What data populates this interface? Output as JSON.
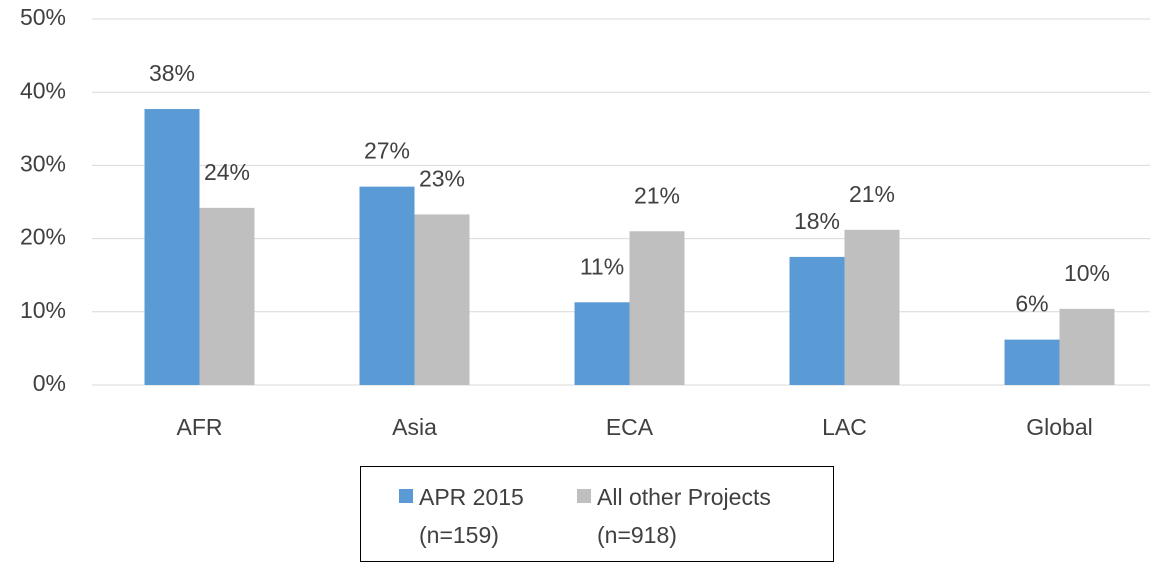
{
  "chart_data": {
    "type": "bar",
    "categories": [
      "AFR",
      "Asia",
      "ECA",
      "LAC",
      "Global"
    ],
    "series": [
      {
        "name": "APR 2015 (n=159)",
        "color": "#5b9bd5",
        "values": [
          37.7,
          27.1,
          11.3,
          17.5,
          6.2
        ],
        "value_labels": [
          "38%",
          "27%",
          "11%",
          "18%",
          "6%"
        ]
      },
      {
        "name": "All other Projects (n=918)",
        "color": "#bfbfbf",
        "values": [
          24.2,
          23.3,
          21.0,
          21.2,
          10.4
        ],
        "value_labels": [
          "24%",
          "23%",
          "21%",
          "21%",
          "10%"
        ]
      }
    ],
    "ylim": [
      0,
      50
    ],
    "yticks": [
      {
        "value": 0,
        "label": "0%"
      },
      {
        "value": 10,
        "label": "10%"
      },
      {
        "value": 20,
        "label": "20%"
      },
      {
        "value": 30,
        "label": "30%"
      },
      {
        "value": 40,
        "label": "40%"
      },
      {
        "value": 50,
        "label": "50%"
      }
    ],
    "grid": true,
    "legend": "bottom"
  }
}
